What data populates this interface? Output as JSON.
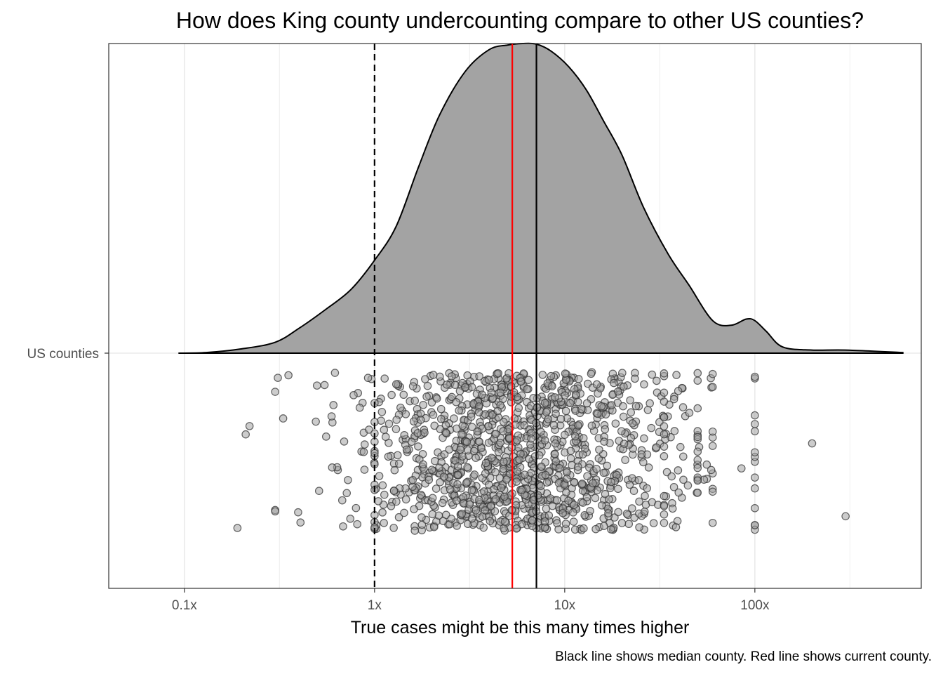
{
  "chart_data": {
    "type": "ridgeline-density-jitter",
    "title": "How does King county undercounting compare to other US counties?",
    "xlabel": "True cases might be this many times higher",
    "caption": "Black line shows median county. Red line shows current county.",
    "x_scale": "log10",
    "x_ticks": [
      {
        "value": 0.1,
        "label": "0.1x"
      },
      {
        "value": 1,
        "label": "1x"
      },
      {
        "value": 10,
        "label": "10x"
      },
      {
        "value": 100,
        "label": "100x"
      }
    ],
    "xlim": [
      0.04,
      750
    ],
    "y_categories": [
      "US counties"
    ],
    "grid": true,
    "reference_lines": [
      {
        "value": 1,
        "color": "#000000",
        "style": "dashed"
      },
      {
        "value": 5.3,
        "color": "#ff0000",
        "style": "solid"
      },
      {
        "value": 7.1,
        "color": "#000000",
        "style": "solid"
      }
    ],
    "density": {
      "fill": "#a3a3a3",
      "stroke": "#000000",
      "x": [
        0.093,
        0.13,
        0.2,
        0.3,
        0.4,
        0.55,
        0.75,
        1.0,
        1.3,
        1.7,
        2.2,
        3.0,
        4.0,
        5.0,
        6.0,
        7.1,
        8.5,
        10.5,
        13.0,
        16.0,
        20.0,
        26.0,
        35.0,
        45.0,
        60.0,
        75.0,
        90.0,
        100.0,
        115.0,
        140.0,
        200.0,
        300.0,
        600.0
      ],
      "y": [
        0.0,
        0.002,
        0.014,
        0.035,
        0.08,
        0.14,
        0.205,
        0.3,
        0.41,
        0.6,
        0.77,
        0.91,
        0.98,
        0.995,
        1.0,
        0.998,
        0.975,
        0.925,
        0.85,
        0.75,
        0.64,
        0.47,
        0.32,
        0.22,
        0.105,
        0.09,
        0.11,
        0.105,
        0.07,
        0.02,
        0.01,
        0.01,
        0.002
      ]
    },
    "points": {
      "count": 1200,
      "fill": "#a3a3a3",
      "stroke": "#333333",
      "stacked_values": [
        1,
        33.3,
        50,
        100
      ],
      "outliers": [
        0.21,
        0.19,
        0.22,
        0.31,
        300,
        200,
        85
      ]
    }
  }
}
